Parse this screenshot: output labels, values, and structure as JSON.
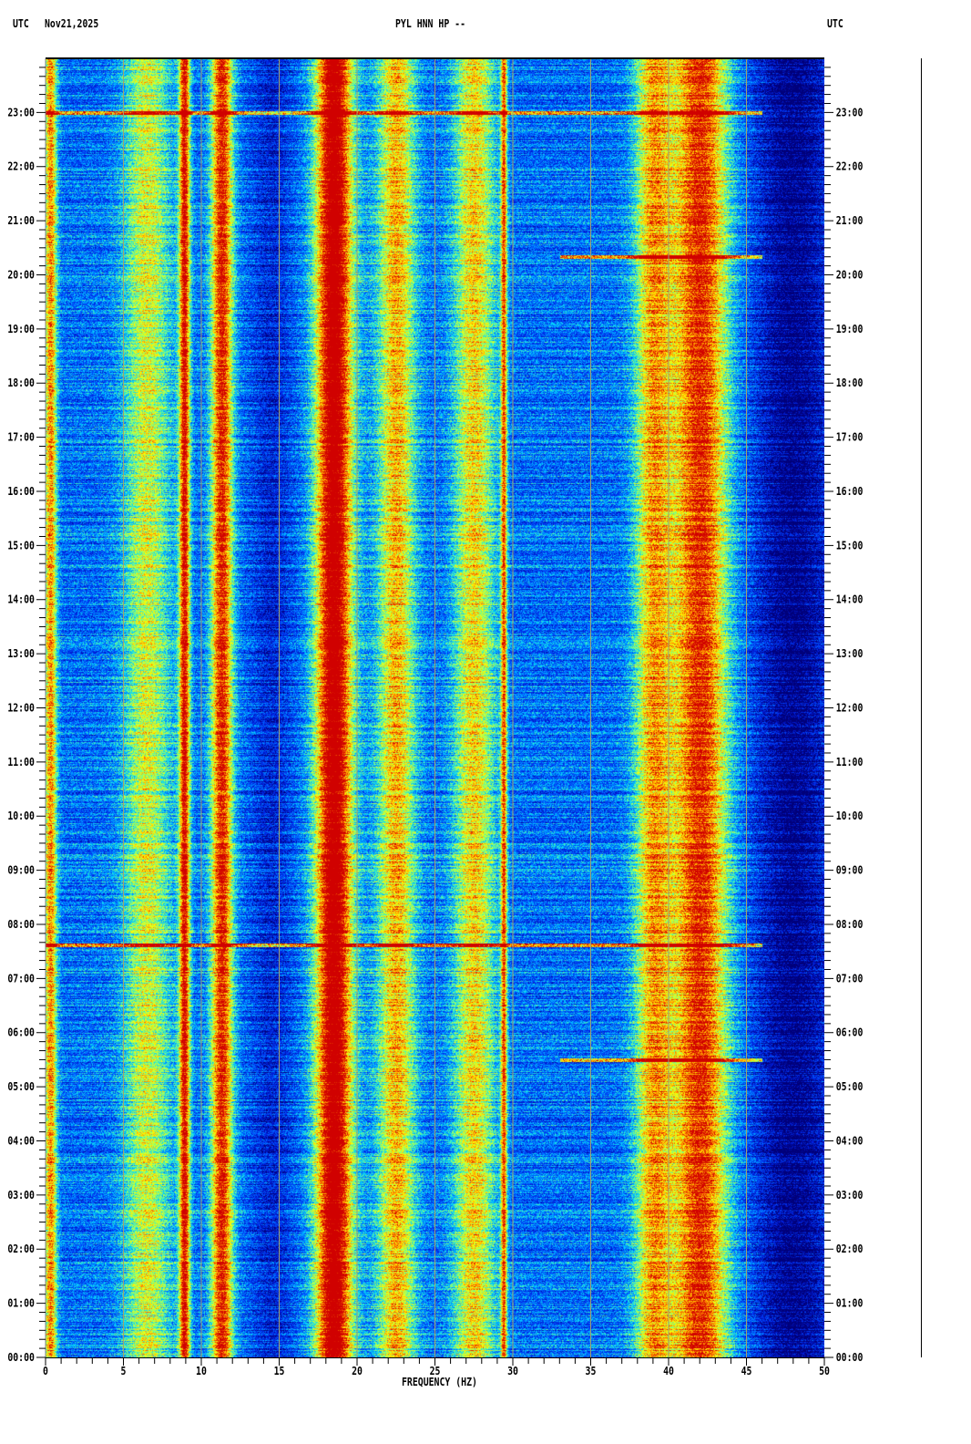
{
  "header": {
    "left_tz": "UTC",
    "date": "Nov21,2025",
    "station": "PYL HNN HP --",
    "right_tz": "UTC"
  },
  "chart_data": {
    "type": "heatmap",
    "xlabel": "FREQUENCY (HZ)",
    "xlim": [
      0,
      50
    ],
    "x_ticks": [
      "0",
      "5",
      "10",
      "15",
      "20",
      "25",
      "30",
      "35",
      "40",
      "45",
      "50"
    ],
    "ylim_hours": [
      0,
      24
    ],
    "y_ticks": [
      "00:00",
      "01:00",
      "02:00",
      "03:00",
      "04:00",
      "05:00",
      "06:00",
      "07:00",
      "08:00",
      "09:00",
      "10:00",
      "11:00",
      "12:00",
      "13:00",
      "14:00",
      "15:00",
      "16:00",
      "17:00",
      "18:00",
      "19:00",
      "20:00",
      "21:00",
      "22:00",
      "23:00"
    ],
    "grid_x_every_hz": 5,
    "colormap": [
      "#00007a",
      "#0020e0",
      "#0060ff",
      "#00d0ff",
      "#80ff80",
      "#ffff00",
      "#ff8000",
      "#d00000"
    ],
    "gridline_color": "#a0a070",
    "baseline_intensity": 0.3,
    "bands": [
      {
        "center_hz": 0.3,
        "width_hz": 0.4,
        "intensity": 0.55
      },
      {
        "center_hz": 6.5,
        "width_hz": 1.5,
        "intensity": 0.38
      },
      {
        "center_hz": 8.9,
        "width_hz": 0.35,
        "intensity": 0.72
      },
      {
        "center_hz": 11.3,
        "width_hz": 0.7,
        "intensity": 0.7
      },
      {
        "center_hz": 14.5,
        "width_hz": 1.3,
        "intensity": -0.15
      },
      {
        "center_hz": 18.5,
        "width_hz": 1.2,
        "intensity": 0.88
      },
      {
        "center_hz": 22.5,
        "width_hz": 1.2,
        "intensity": 0.5
      },
      {
        "center_hz": 27.5,
        "width_hz": 1.3,
        "intensity": 0.45
      },
      {
        "center_hz": 29.4,
        "width_hz": 0.2,
        "intensity": 0.6
      },
      {
        "center_hz": 39.0,
        "width_hz": 1.2,
        "intensity": 0.5
      },
      {
        "center_hz": 42.0,
        "width_hz": 1.8,
        "intensity": 0.68
      },
      {
        "center_hz": 48.0,
        "width_hz": 2.5,
        "intensity": -0.3
      }
    ],
    "events": [
      {
        "time": "23:00",
        "from_hz": 0,
        "to_hz": 46,
        "intensity": 0.7
      },
      {
        "time": "20:20",
        "from_hz": 33,
        "to_hz": 46,
        "intensity": 0.7
      },
      {
        "time": "07:37",
        "from_hz": 0,
        "to_hz": 46,
        "intensity": 0.75
      },
      {
        "time": "05:30",
        "from_hz": 33,
        "to_hz": 46,
        "intensity": 0.6
      }
    ]
  }
}
